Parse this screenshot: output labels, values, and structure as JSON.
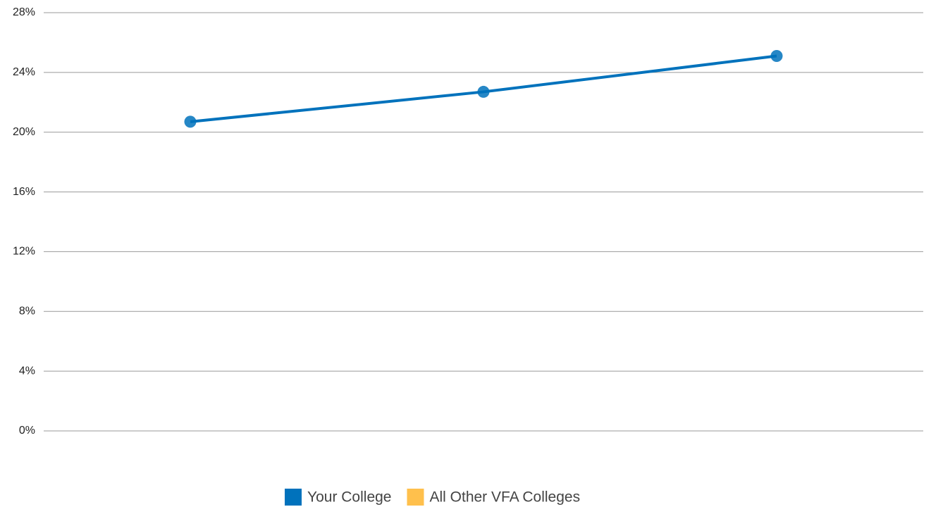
{
  "chart_data": {
    "type": "line",
    "categories": [
      null,
      null,
      null
    ],
    "series": [
      {
        "name": "Your College",
        "color": "#0072bc",
        "values": [
          20.7,
          22.7,
          25.1
        ]
      },
      {
        "name": "All Other VFA Colleges",
        "color": "#ffc04c",
        "values": [
          null,
          null,
          null
        ]
      }
    ],
    "ylim": [
      0,
      28
    ],
    "yticks": [
      {
        "value": 0,
        "label": "0%"
      },
      {
        "value": 4,
        "label": "4%"
      },
      {
        "value": 8,
        "label": "8%"
      },
      {
        "value": 12,
        "label": "12%"
      },
      {
        "value": 16,
        "label": "16%"
      },
      {
        "value": 20,
        "label": "20%"
      },
      {
        "value": 24,
        "label": "24%"
      },
      {
        "value": 28,
        "label": "28%"
      }
    ],
    "grid": true,
    "legend": "bottom"
  }
}
